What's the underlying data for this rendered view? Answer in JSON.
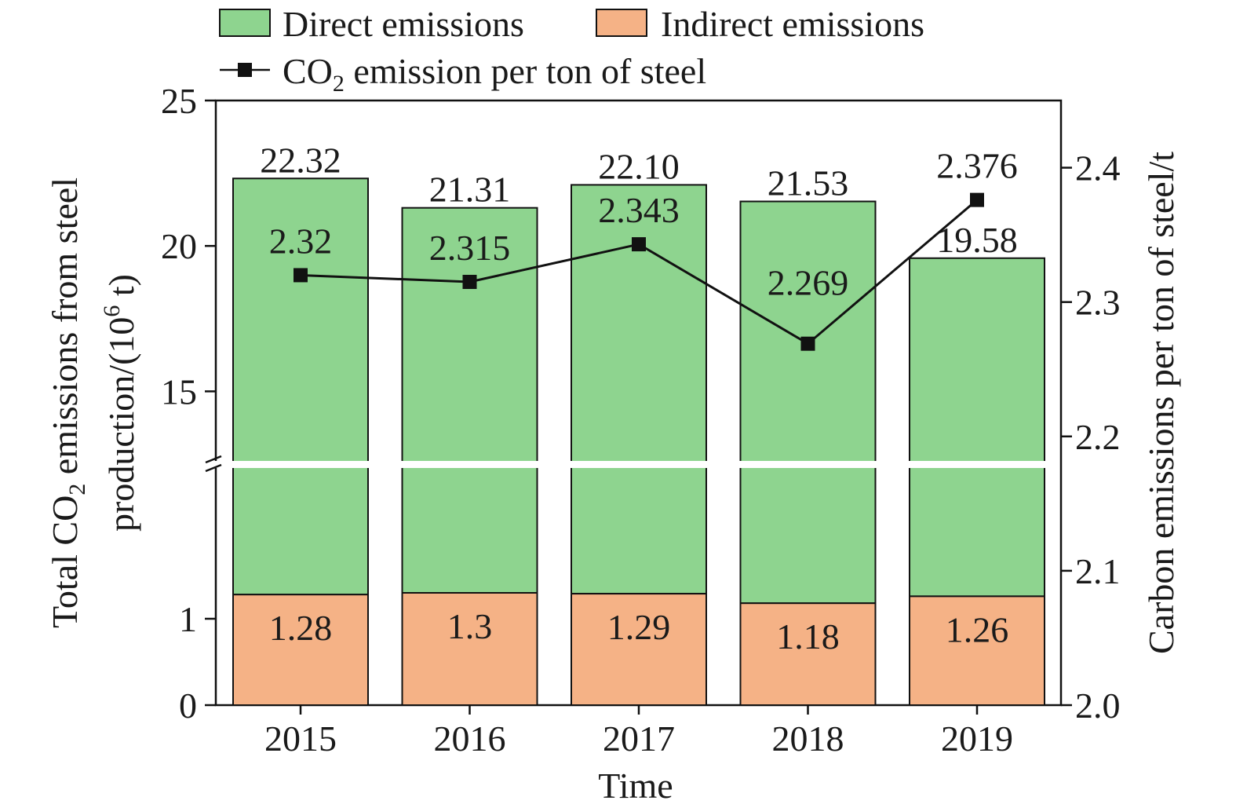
{
  "chart_data": {
    "type": "bar",
    "stacked": true,
    "categories": [
      "2015",
      "2016",
      "2017",
      "2018",
      "2019"
    ],
    "series": [
      {
        "name": "Direct emissions",
        "color": "#8ed48f",
        "kind": "bar",
        "axis": "left",
        "values": [
          21.04,
          20.01,
          20.81,
          20.35,
          18.32
        ]
      },
      {
        "name": "Indirect emissions",
        "color": "#f5b286",
        "kind": "bar",
        "axis": "left",
        "values": [
          1.28,
          1.3,
          1.29,
          1.18,
          1.26
        ],
        "labels": [
          "1.28",
          "1.3",
          "1.29",
          "1.18",
          "1.26"
        ]
      },
      {
        "name_parts": [
          "CO",
          "2",
          " emission per ton of steel"
        ],
        "color": "#111111",
        "kind": "line",
        "marker": "square",
        "axis": "right",
        "values": [
          2.32,
          2.315,
          2.343,
          2.269,
          2.376
        ],
        "labels": [
          "2.32",
          "2.315",
          "2.343",
          "2.269",
          "2.376"
        ]
      }
    ],
    "totals": [
      22.32,
      21.31,
      22.1,
      21.53,
      19.58
    ],
    "total_labels": [
      "22.32",
      "21.31",
      "22.10",
      "21.53",
      "19.58"
    ],
    "xlabel": "Time",
    "ylabel_left": {
      "line1_parts": [
        "Total CO",
        "2",
        " emissions from steel"
      ],
      "line2_parts": [
        "production/(10",
        "6",
        " t)"
      ]
    },
    "ylabel_right": "Carbon emissions per ton of steel/t",
    "y_left": {
      "broken_axis": true,
      "lower_range": [
        0,
        1.8
      ],
      "upper_range": [
        12.5,
        25
      ],
      "lower_ticks": [
        "0",
        "1"
      ],
      "upper_ticks": [
        "15",
        "20",
        "25"
      ]
    },
    "y_right": {
      "ylim": [
        2.0,
        2.45
      ],
      "ticks": [
        "2.0",
        "2.1",
        "2.2",
        "2.3",
        "2.4"
      ]
    },
    "legend_position": "top",
    "grid": false
  }
}
